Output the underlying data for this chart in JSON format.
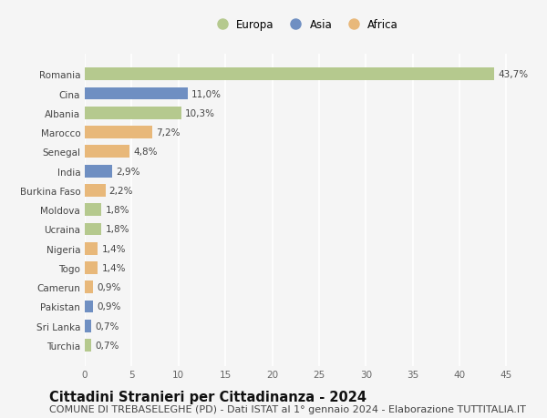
{
  "countries": [
    "Romania",
    "Cina",
    "Albania",
    "Marocco",
    "Senegal",
    "India",
    "Burkina Faso",
    "Moldova",
    "Ucraina",
    "Nigeria",
    "Togo",
    "Camerun",
    "Pakistan",
    "Sri Lanka",
    "Turchia"
  ],
  "values": [
    43.7,
    11.0,
    10.3,
    7.2,
    4.8,
    2.9,
    2.2,
    1.8,
    1.8,
    1.4,
    1.4,
    0.9,
    0.9,
    0.7,
    0.7
  ],
  "labels": [
    "43,7%",
    "11,0%",
    "10,3%",
    "7,2%",
    "4,8%",
    "2,9%",
    "2,2%",
    "1,8%",
    "1,8%",
    "1,4%",
    "1,4%",
    "0,9%",
    "0,9%",
    "0,7%",
    "0,7%"
  ],
  "continents": [
    "Europa",
    "Asia",
    "Europa",
    "Africa",
    "Africa",
    "Asia",
    "Africa",
    "Europa",
    "Europa",
    "Africa",
    "Africa",
    "Africa",
    "Asia",
    "Asia",
    "Europa"
  ],
  "colors": {
    "Europa": "#b5c98e",
    "Asia": "#6f8fc2",
    "Africa": "#e8b87a"
  },
  "legend_order": [
    "Europa",
    "Asia",
    "Africa"
  ],
  "title": "Cittadini Stranieri per Cittadinanza - 2024",
  "subtitle": "COMUNE DI TREBASELEGHE (PD) - Dati ISTAT al 1° gennaio 2024 - Elaborazione TUTTITALIA.IT",
  "xlim": [
    0,
    47
  ],
  "xticks": [
    0,
    5,
    10,
    15,
    20,
    25,
    30,
    35,
    40,
    45
  ],
  "background_color": "#f5f5f5",
  "grid_color": "#ffffff",
  "bar_height": 0.65,
  "title_fontsize": 10.5,
  "subtitle_fontsize": 8,
  "label_fontsize": 7.5,
  "tick_fontsize": 7.5,
  "legend_fontsize": 8.5
}
